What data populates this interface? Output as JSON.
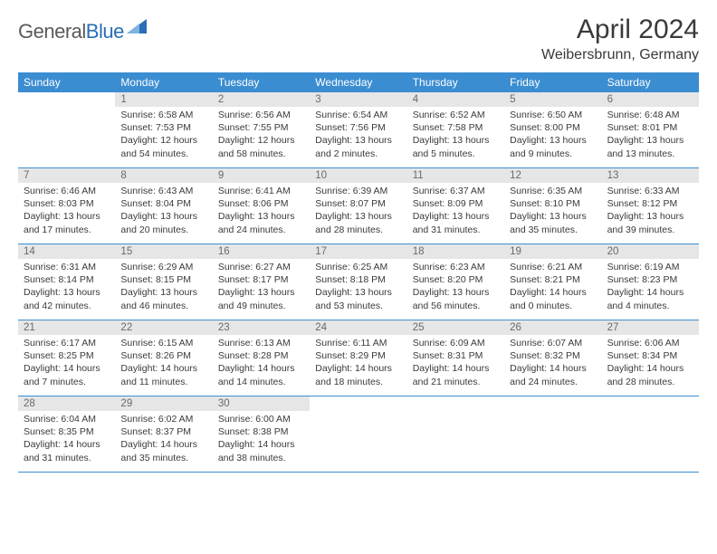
{
  "brand": {
    "part1": "General",
    "part2": "Blue"
  },
  "title": "April 2024",
  "location": "Weibersbrunn, Germany",
  "weekdays": [
    "Sunday",
    "Monday",
    "Tuesday",
    "Wednesday",
    "Thursday",
    "Friday",
    "Saturday"
  ],
  "colors": {
    "header_bar": "#3b8dd1",
    "day_number_bg": "#e6e6e6",
    "text": "#3a3a3a",
    "logo_blue": "#2a6fb5"
  },
  "start_offset": 1,
  "days": [
    {
      "n": 1,
      "sunrise": "6:58 AM",
      "sunset": "7:53 PM",
      "daylight": "12 hours and 54 minutes."
    },
    {
      "n": 2,
      "sunrise": "6:56 AM",
      "sunset": "7:55 PM",
      "daylight": "12 hours and 58 minutes."
    },
    {
      "n": 3,
      "sunrise": "6:54 AM",
      "sunset": "7:56 PM",
      "daylight": "13 hours and 2 minutes."
    },
    {
      "n": 4,
      "sunrise": "6:52 AM",
      "sunset": "7:58 PM",
      "daylight": "13 hours and 5 minutes."
    },
    {
      "n": 5,
      "sunrise": "6:50 AM",
      "sunset": "8:00 PM",
      "daylight": "13 hours and 9 minutes."
    },
    {
      "n": 6,
      "sunrise": "6:48 AM",
      "sunset": "8:01 PM",
      "daylight": "13 hours and 13 minutes."
    },
    {
      "n": 7,
      "sunrise": "6:46 AM",
      "sunset": "8:03 PM",
      "daylight": "13 hours and 17 minutes."
    },
    {
      "n": 8,
      "sunrise": "6:43 AM",
      "sunset": "8:04 PM",
      "daylight": "13 hours and 20 minutes."
    },
    {
      "n": 9,
      "sunrise": "6:41 AM",
      "sunset": "8:06 PM",
      "daylight": "13 hours and 24 minutes."
    },
    {
      "n": 10,
      "sunrise": "6:39 AM",
      "sunset": "8:07 PM",
      "daylight": "13 hours and 28 minutes."
    },
    {
      "n": 11,
      "sunrise": "6:37 AM",
      "sunset": "8:09 PM",
      "daylight": "13 hours and 31 minutes."
    },
    {
      "n": 12,
      "sunrise": "6:35 AM",
      "sunset": "8:10 PM",
      "daylight": "13 hours and 35 minutes."
    },
    {
      "n": 13,
      "sunrise": "6:33 AM",
      "sunset": "8:12 PM",
      "daylight": "13 hours and 39 minutes."
    },
    {
      "n": 14,
      "sunrise": "6:31 AM",
      "sunset": "8:14 PM",
      "daylight": "13 hours and 42 minutes."
    },
    {
      "n": 15,
      "sunrise": "6:29 AM",
      "sunset": "8:15 PM",
      "daylight": "13 hours and 46 minutes."
    },
    {
      "n": 16,
      "sunrise": "6:27 AM",
      "sunset": "8:17 PM",
      "daylight": "13 hours and 49 minutes."
    },
    {
      "n": 17,
      "sunrise": "6:25 AM",
      "sunset": "8:18 PM",
      "daylight": "13 hours and 53 minutes."
    },
    {
      "n": 18,
      "sunrise": "6:23 AM",
      "sunset": "8:20 PM",
      "daylight": "13 hours and 56 minutes."
    },
    {
      "n": 19,
      "sunrise": "6:21 AM",
      "sunset": "8:21 PM",
      "daylight": "14 hours and 0 minutes."
    },
    {
      "n": 20,
      "sunrise": "6:19 AM",
      "sunset": "8:23 PM",
      "daylight": "14 hours and 4 minutes."
    },
    {
      "n": 21,
      "sunrise": "6:17 AM",
      "sunset": "8:25 PM",
      "daylight": "14 hours and 7 minutes."
    },
    {
      "n": 22,
      "sunrise": "6:15 AM",
      "sunset": "8:26 PM",
      "daylight": "14 hours and 11 minutes."
    },
    {
      "n": 23,
      "sunrise": "6:13 AM",
      "sunset": "8:28 PM",
      "daylight": "14 hours and 14 minutes."
    },
    {
      "n": 24,
      "sunrise": "6:11 AM",
      "sunset": "8:29 PM",
      "daylight": "14 hours and 18 minutes."
    },
    {
      "n": 25,
      "sunrise": "6:09 AM",
      "sunset": "8:31 PM",
      "daylight": "14 hours and 21 minutes."
    },
    {
      "n": 26,
      "sunrise": "6:07 AM",
      "sunset": "8:32 PM",
      "daylight": "14 hours and 24 minutes."
    },
    {
      "n": 27,
      "sunrise": "6:06 AM",
      "sunset": "8:34 PM",
      "daylight": "14 hours and 28 minutes."
    },
    {
      "n": 28,
      "sunrise": "6:04 AM",
      "sunset": "8:35 PM",
      "daylight": "14 hours and 31 minutes."
    },
    {
      "n": 29,
      "sunrise": "6:02 AM",
      "sunset": "8:37 PM",
      "daylight": "14 hours and 35 minutes."
    },
    {
      "n": 30,
      "sunrise": "6:00 AM",
      "sunset": "8:38 PM",
      "daylight": "14 hours and 38 minutes."
    }
  ],
  "labels": {
    "sunrise": "Sunrise:",
    "sunset": "Sunset:",
    "daylight": "Daylight:"
  }
}
